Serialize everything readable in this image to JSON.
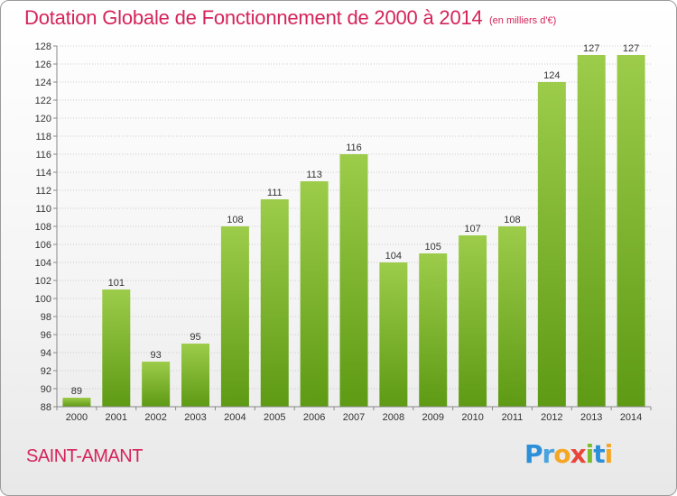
{
  "header": {
    "title": "Dotation Globale de Fonctionnement de 2000 à 2014",
    "unit": "(en milliers d'€)"
  },
  "footer": {
    "commune": "SAINT-AMANT",
    "logo_letters": [
      {
        "char": "P",
        "color": "#2c8fd8"
      },
      {
        "char": "r",
        "color": "#4aa3e0"
      },
      {
        "char": "o",
        "color": "#f5a623"
      },
      {
        "char": "x",
        "color": "#e8453c"
      },
      {
        "char": "i",
        "color": "#7cbd2e"
      },
      {
        "char": "t",
        "color": "#2c8fd8"
      },
      {
        "char": "i",
        "color": "#f5a623"
      }
    ]
  },
  "chart_data": {
    "type": "bar",
    "title": "Dotation Globale de Fonctionnement de 2000 à 2014",
    "subtitle": "(en milliers d'€)",
    "xlabel": "",
    "ylabel": "",
    "categories": [
      "2000",
      "2001",
      "2002",
      "2003",
      "2004",
      "2005",
      "2006",
      "2007",
      "2008",
      "2009",
      "2010",
      "2011",
      "2012",
      "2013",
      "2014"
    ],
    "values": [
      89,
      101,
      93,
      95,
      108,
      111,
      113,
      116,
      104,
      105,
      107,
      108,
      124,
      127,
      127
    ],
    "ylim": [
      88,
      128
    ],
    "yticks": [
      88,
      90,
      92,
      94,
      96,
      98,
      100,
      102,
      104,
      106,
      108,
      110,
      112,
      114,
      116,
      118,
      120,
      122,
      124,
      126,
      128
    ],
    "grid": true,
    "legend": "none",
    "colors": {
      "bar_light": "#9ccc4a",
      "bar_dark": "#5e9a14",
      "grid": "#cccccc",
      "accent": "#d4245a"
    }
  }
}
